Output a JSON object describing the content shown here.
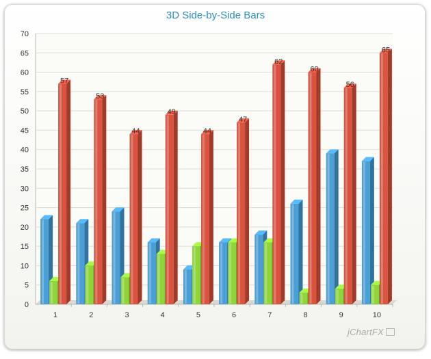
{
  "chart_data": {
    "type": "bar",
    "title": "3D Side-by-Side Bars",
    "categories": [
      "1",
      "2",
      "3",
      "4",
      "5",
      "6",
      "7",
      "8",
      "9",
      "10"
    ],
    "series": [
      {
        "values": [
          22,
          21,
          24,
          16,
          9,
          16,
          18,
          26,
          39,
          37
        ],
        "color": "#4a9fd6"
      },
      {
        "values": [
          6,
          10,
          7,
          13,
          15,
          16,
          16,
          3,
          4,
          5
        ],
        "color": "#8fd43a"
      },
      {
        "values": [
          57,
          53,
          44,
          49,
          44,
          47,
          62,
          60,
          56,
          65
        ],
        "color": "#d9533f",
        "data_labels": true
      }
    ],
    "ylim": [
      0,
      70
    ],
    "ytick_step": 5,
    "grid": true,
    "style": "3d"
  },
  "watermark": "jChartFX"
}
